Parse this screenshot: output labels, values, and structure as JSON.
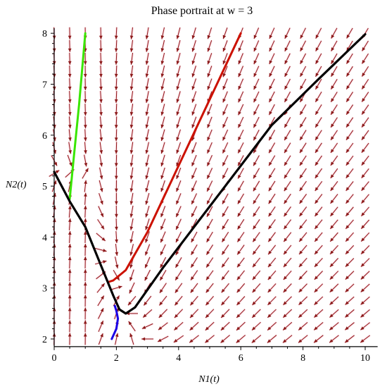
{
  "chart_data": {
    "type": "phase-portrait",
    "title": "Phase portrait at w = 3",
    "xlabel": "N1(t)",
    "ylabel": "N2(t)",
    "xlim": [
      0,
      10.4
    ],
    "ylim": [
      1.85,
      8.1
    ],
    "xticks": [
      0,
      2,
      4,
      6,
      8,
      10
    ],
    "yticks": [
      2,
      3,
      4,
      5,
      6,
      7,
      8
    ],
    "field": {
      "color": "#8b1a1a",
      "x_step": 0.5,
      "y_step": 0.25,
      "x_range": [
        0,
        10
      ],
      "y_range": [
        2,
        8
      ]
    },
    "trajectories": [
      {
        "color": "#39e600",
        "points": [
          [
            1.0,
            8.0
          ],
          [
            0.8,
            6.6
          ],
          [
            0.62,
            5.5
          ],
          [
            0.5,
            4.75
          ]
        ]
      },
      {
        "color": "#cc1100",
        "points": [
          [
            6.0,
            8.0
          ],
          [
            5.0,
            6.7
          ],
          [
            4.0,
            5.4
          ],
          [
            3.0,
            4.1
          ],
          [
            2.3,
            3.35
          ],
          [
            1.9,
            3.15
          ],
          [
            1.75,
            3.12
          ]
        ]
      },
      {
        "color": "#1a00e6",
        "points": [
          [
            1.85,
            2.0
          ],
          [
            2.0,
            2.2
          ],
          [
            2.05,
            2.4
          ],
          [
            2.0,
            2.55
          ],
          [
            1.95,
            2.65
          ]
        ]
      },
      {
        "color": "#000000",
        "points": [
          [
            0.0,
            5.28
          ],
          [
            0.5,
            4.7
          ],
          [
            1.0,
            4.2
          ],
          [
            1.5,
            3.45
          ],
          [
            1.9,
            2.85
          ],
          [
            2.1,
            2.58
          ],
          [
            2.3,
            2.5
          ],
          [
            2.6,
            2.62
          ],
          [
            3.5,
            3.4
          ],
          [
            5.0,
            4.6
          ],
          [
            7.0,
            6.2
          ],
          [
            8.5,
            7.1
          ],
          [
            10.0,
            7.98
          ]
        ]
      }
    ]
  }
}
